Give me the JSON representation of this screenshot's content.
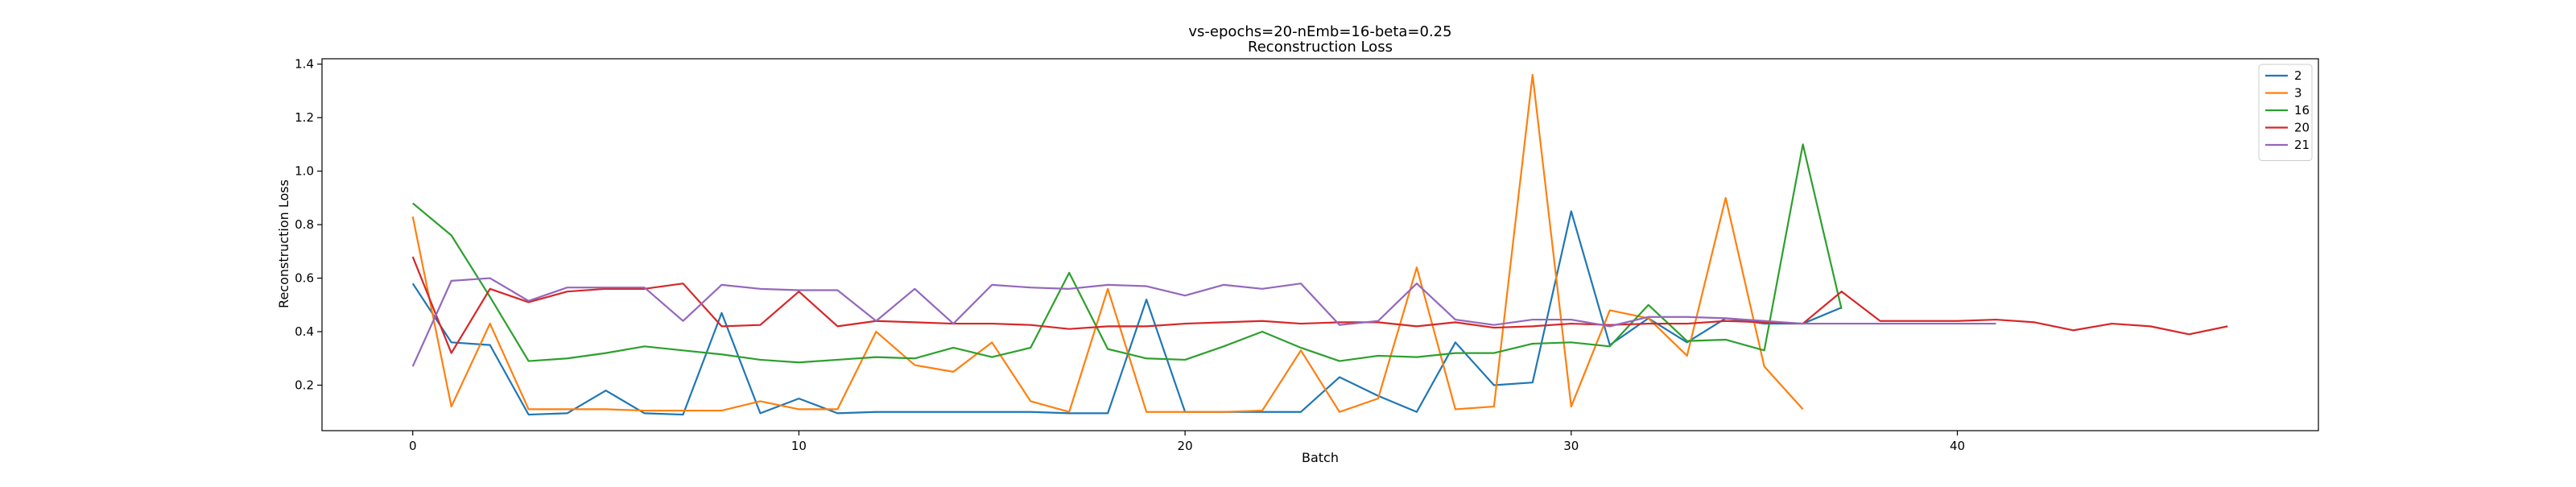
{
  "chart_data": {
    "type": "line",
    "title": "vs-epochs=20-nEmb=16-beta=0.25",
    "subtitle": "Reconstruction Loss",
    "xlabel": "Batch",
    "ylabel": "Reconstruction Loss",
    "xlim": [
      -2.35,
      49.35
    ],
    "ylim": [
      0.03,
      1.42
    ],
    "xticks": [
      0,
      10,
      20,
      30,
      40
    ],
    "yticks": [
      0.2,
      0.4,
      0.6,
      0.8,
      1.0,
      1.2,
      1.4
    ],
    "ytick_labels": [
      "0.2",
      "0.4",
      "0.6",
      "0.8",
      "1.0",
      "1.2",
      "1.4"
    ],
    "grid": false,
    "legend_position": "top-right",
    "series": [
      {
        "name": "2",
        "color": "#1f77b4",
        "y": [
          0.58,
          0.36,
          0.35,
          0.09,
          0.095,
          0.18,
          0.095,
          0.09,
          0.47,
          0.095,
          0.15,
          0.095,
          0.1,
          0.1,
          0.1,
          0.1,
          0.1,
          0.095,
          0.095,
          0.52,
          0.1,
          0.1,
          0.1,
          0.1,
          0.23,
          0.16,
          0.1,
          0.36,
          0.2,
          0.21,
          0.85,
          0.35,
          0.45,
          0.36,
          0.45,
          0.43,
          0.43,
          0.49
        ]
      },
      {
        "name": "3",
        "color": "#ff7f0e",
        "y": [
          0.83,
          0.12,
          0.43,
          0.11,
          0.11,
          0.11,
          0.105,
          0.105,
          0.105,
          0.14,
          0.11,
          0.11,
          0.4,
          0.275,
          0.25,
          0.36,
          0.14,
          0.1,
          0.56,
          0.1,
          0.1,
          0.1,
          0.105,
          0.33,
          0.1,
          0.15,
          0.64,
          0.11,
          0.12,
          1.36,
          0.12,
          0.48,
          0.45,
          0.31,
          0.9,
          0.27,
          0.11
        ]
      },
      {
        "name": "16",
        "color": "#2ca02c",
        "y": [
          0.88,
          0.76,
          0.53,
          0.29,
          0.3,
          0.32,
          0.345,
          0.33,
          0.315,
          0.295,
          0.285,
          0.295,
          0.305,
          0.3,
          0.34,
          0.305,
          0.34,
          0.62,
          0.335,
          0.3,
          0.295,
          0.345,
          0.4,
          0.34,
          0.29,
          0.31,
          0.305,
          0.32,
          0.32,
          0.355,
          0.36,
          0.345,
          0.5,
          0.365,
          0.37,
          0.33,
          1.1,
          0.485
        ]
      },
      {
        "name": "20",
        "color": "#d62728",
        "y": [
          0.68,
          0.32,
          0.56,
          0.51,
          0.55,
          0.56,
          0.56,
          0.58,
          0.42,
          0.425,
          0.55,
          0.42,
          0.44,
          0.435,
          0.43,
          0.43,
          0.425,
          0.41,
          0.42,
          0.42,
          0.43,
          0.435,
          0.44,
          0.43,
          0.435,
          0.435,
          0.42,
          0.435,
          0.415,
          0.42,
          0.43,
          0.425,
          0.43,
          0.43,
          0.44,
          0.435,
          0.43,
          0.55,
          0.44,
          0.44,
          0.44,
          0.445,
          0.435,
          0.405,
          0.43,
          0.42,
          0.39,
          0.42
        ]
      },
      {
        "name": "21",
        "color": "#9467bd",
        "y": [
          0.27,
          0.59,
          0.6,
          0.515,
          0.565,
          0.565,
          0.565,
          0.44,
          0.575,
          0.56,
          0.555,
          0.555,
          0.44,
          0.56,
          0.43,
          0.575,
          0.565,
          0.56,
          0.575,
          0.57,
          0.535,
          0.575,
          0.56,
          0.58,
          0.425,
          0.44,
          0.58,
          0.445,
          0.425,
          0.445,
          0.445,
          0.42,
          0.455,
          0.455,
          0.45,
          0.44,
          0.43,
          0.43,
          0.43,
          0.43,
          0.43,
          0.43
        ]
      }
    ]
  }
}
